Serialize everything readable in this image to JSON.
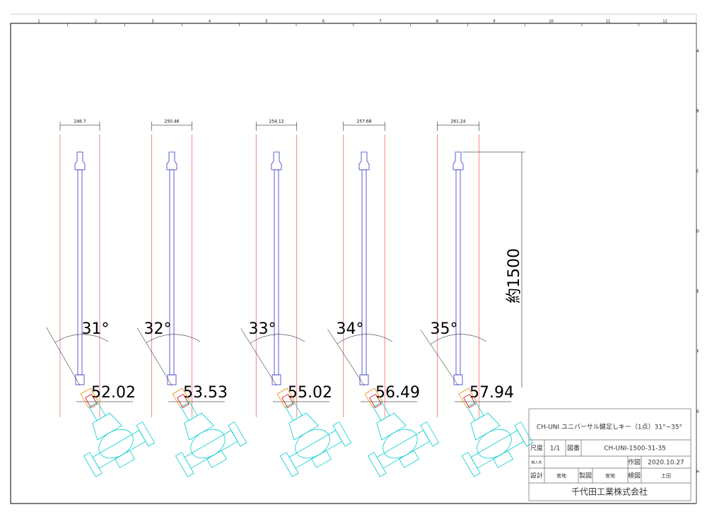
{
  "ruler": {
    "columns": [
      "1",
      "2",
      "3",
      "4",
      "5",
      "6",
      "7",
      "8",
      "9",
      "10",
      "11",
      "12"
    ],
    "rows": [
      "A",
      "B",
      "C",
      "D",
      "E",
      "F",
      "G",
      "H"
    ]
  },
  "keys": [
    {
      "width": "246.7",
      "angle": "31°",
      "offset": "52.02"
    },
    {
      "width": "250.46",
      "angle": "32°",
      "offset": "53.53"
    },
    {
      "width": "254.12",
      "angle": "33°",
      "offset": "55.02"
    },
    {
      "width": "257.68",
      "angle": "34°",
      "offset": "56.49"
    },
    {
      "width": "261.24",
      "angle": "35°",
      "offset": "57.94"
    }
  ],
  "length_label": "約1500",
  "title_block": {
    "title": "CH-UNI ユニバーサル鍵足しキー（1点）31°~35°",
    "scale_label": "尺度",
    "scale": "1/1",
    "drawing_no_label": "図番",
    "drawing_no": "CH-UNI-1500-31-35",
    "customer_label": "納入先",
    "drawn_date_label": "作図",
    "drawn_date": "2020.10.27",
    "design_label": "設計",
    "designer": "宮地",
    "drafting_label": "製図",
    "drafter": "宮地",
    "check_label": "検図",
    "checker": "土田",
    "company": "千代田工業株式会社"
  }
}
